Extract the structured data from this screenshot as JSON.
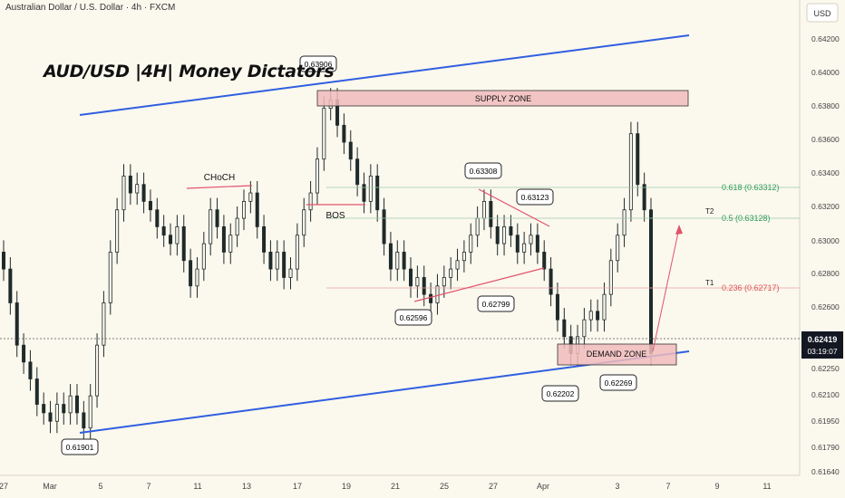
{
  "header": {
    "symbol_line": "Australian Dollar / U.S. Dollar · 4h · FXCM",
    "currency": "USD",
    "title": "AUD/USD |4H| Money Dictators"
  },
  "price_axis": {
    "ticks": [
      "0.64200",
      "0.64000",
      "0.63800",
      "0.63600",
      "0.63400",
      "0.63200",
      "0.63000",
      "0.62800",
      "0.62600",
      "0.62250",
      "0.62100",
      "0.61950",
      "0.61790",
      "0.61640"
    ],
    "last_price": "0.62419",
    "countdown": "03:19:07"
  },
  "time_axis": {
    "labels": [
      "27",
      "Mar",
      "5",
      "7",
      "11",
      "13",
      "17",
      "19",
      "21",
      "25",
      "27",
      "Apr",
      "3",
      "7",
      "9",
      "11"
    ]
  },
  "annotations": {
    "supply_zone": "SUPPLY ZONE",
    "demand_zone": "DEMAND ZONE",
    "choch": "CHoCH",
    "bos": "BOS",
    "t1": "T1",
    "t2": "T2",
    "price_labels": [
      "0.63906",
      "0.63308",
      "0.63123",
      "0.62596",
      "0.62799",
      "0.62202",
      "0.62269",
      "0.61901"
    ]
  },
  "fib_levels": [
    {
      "label": "0.618 (0.63312)",
      "color": "#2e9e5b"
    },
    {
      "label": "0.5 (0.63128)",
      "color": "#2e9e5b"
    },
    {
      "label": "0.236 (0.62717)",
      "color": "#e05555"
    }
  ],
  "colors": {
    "background": "#fbf8ee",
    "channel": "#2f5fe0",
    "zone_fill": "#f0bcbc",
    "zone_stroke": "#333333",
    "bull": "#1f2a2a",
    "bear": "#1f2a2a",
    "pink_line": "#e0536b",
    "price_tag": "#131722"
  },
  "chart_data": {
    "type": "candlestick",
    "title": "AUD/USD |4H| Money Dictators",
    "y_range": [
      0.6163,
      0.6428
    ],
    "x_labels": [
      "27",
      "Mar",
      "5",
      "7",
      "11",
      "13",
      "17",
      "19",
      "21",
      "25",
      "27",
      "Apr",
      "3",
      "7",
      "9",
      "11"
    ],
    "series": [
      {
        "points": [
          [
            0.6295,
            0.6285
          ],
          [
            0.6285,
            0.6265
          ],
          [
            0.6265,
            0.624
          ],
          [
            0.624,
            0.623
          ],
          [
            0.623,
            0.622
          ],
          [
            0.622,
            0.6205
          ],
          [
            0.6205,
            0.62
          ],
          [
            0.62,
            0.6195
          ],
          [
            0.6195,
            0.6205
          ],
          [
            0.6205,
            0.62
          ],
          [
            0.62,
            0.621
          ],
          [
            0.621,
            0.62
          ],
          [
            0.62,
            0.6191
          ],
          [
            0.6191,
            0.621
          ],
          [
            0.621,
            0.624
          ],
          [
            0.624,
            0.6265
          ],
          [
            0.6265,
            0.6295
          ],
          [
            0.6295,
            0.632
          ],
          [
            0.632,
            0.634
          ],
          [
            0.634,
            0.633
          ],
          [
            0.633,
            0.6335
          ],
          [
            0.6335,
            0.6325
          ],
          [
            0.6325,
            0.632
          ],
          [
            0.632,
            0.631
          ],
          [
            0.631,
            0.6305
          ],
          [
            0.6305,
            0.63
          ],
          [
            0.63,
            0.631
          ],
          [
            0.631,
            0.629
          ],
          [
            0.629,
            0.6275
          ],
          [
            0.6275,
            0.6285
          ],
          [
            0.6285,
            0.63
          ],
          [
            0.63,
            0.632
          ],
          [
            0.632,
            0.631
          ],
          [
            0.631,
            0.6295
          ],
          [
            0.6295,
            0.6305
          ],
          [
            0.6305,
            0.6315
          ],
          [
            0.6315,
            0.6325
          ],
          [
            0.6325,
            0.633
          ],
          [
            0.633,
            0.631
          ],
          [
            0.631,
            0.6295
          ],
          [
            0.6295,
            0.6285
          ],
          [
            0.6285,
            0.6295
          ],
          [
            0.6295,
            0.628
          ],
          [
            0.628,
            0.6285
          ],
          [
            0.6285,
            0.6305
          ],
          [
            0.6305,
            0.632
          ],
          [
            0.632,
            0.633
          ],
          [
            0.633,
            0.635
          ],
          [
            0.635,
            0.638
          ],
          [
            0.638,
            0.6385
          ],
          [
            0.6385,
            0.637
          ],
          [
            0.637,
            0.636
          ],
          [
            0.636,
            0.635
          ],
          [
            0.635,
            0.6335
          ],
          [
            0.6335,
            0.6325
          ],
          [
            0.6325,
            0.634
          ],
          [
            0.634,
            0.632
          ],
          [
            0.632,
            0.63
          ],
          [
            0.63,
            0.6285
          ],
          [
            0.6285,
            0.6295
          ],
          [
            0.6295,
            0.6285
          ],
          [
            0.6285,
            0.6275
          ],
          [
            0.6275,
            0.628
          ],
          [
            0.628,
            0.627
          ],
          [
            0.627,
            0.6265
          ],
          [
            0.6265,
            0.6275
          ],
          [
            0.6275,
            0.628
          ],
          [
            0.628,
            0.6285
          ],
          [
            0.6285,
            0.629
          ],
          [
            0.629,
            0.6295
          ],
          [
            0.6295,
            0.6305
          ],
          [
            0.6305,
            0.6315
          ],
          [
            0.6315,
            0.6325
          ],
          [
            0.6325,
            0.631
          ],
          [
            0.631,
            0.63
          ],
          [
            0.63,
            0.631
          ],
          [
            0.631,
            0.6305
          ],
          [
            0.6305,
            0.6295
          ],
          [
            0.6295,
            0.63
          ],
          [
            0.63,
            0.6305
          ],
          [
            0.6305,
            0.6295
          ],
          [
            0.6295,
            0.6285
          ],
          [
            0.6285,
            0.627
          ],
          [
            0.627,
            0.6255
          ],
          [
            0.6255,
            0.6245
          ],
          [
            0.6245,
            0.6235
          ],
          [
            0.6235,
            0.6245
          ],
          [
            0.6245,
            0.6255
          ],
          [
            0.6255,
            0.626
          ],
          [
            0.626,
            0.6255
          ],
          [
            0.6255,
            0.627
          ],
          [
            0.627,
            0.629
          ],
          [
            0.629,
            0.6305
          ],
          [
            0.6305,
            0.632
          ],
          [
            0.632,
            0.6365
          ],
          [
            0.6365,
            0.6335
          ],
          [
            0.6335,
            0.632
          ],
          [
            0.632,
            0.6235
          ]
        ]
      }
    ]
  }
}
